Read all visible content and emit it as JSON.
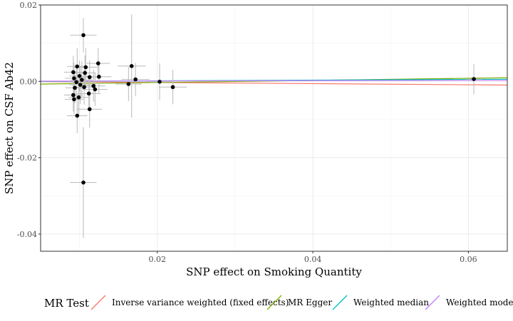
{
  "chart_data": {
    "type": "scatter",
    "xlabel": "SNP effect on Smoking Quantity",
    "ylabel": "SNP effect on CSF Ab42",
    "xlim": [
      0.005,
      0.065
    ],
    "ylim": [
      -0.0445,
      0.02
    ],
    "x_ticks": [
      0.02,
      0.04,
      0.06
    ],
    "x_tick_labels": [
      "0.02",
      "0.04",
      "0.06"
    ],
    "y_ticks": [
      -0.04,
      -0.02,
      0.0,
      0.02
    ],
    "y_tick_labels": [
      "-0.04",
      "-0.02",
      "0.00",
      "0.02"
    ],
    "grid": true,
    "legend": {
      "title": "MR Test",
      "position": "bottom",
      "entries": [
        {
          "label": "Inverse variance weighted (fixed effects)",
          "color": "#F8766D"
        },
        {
          "label": "MR Egger",
          "color": "#7CAE00"
        },
        {
          "label": "Weighted median",
          "color": "#00BFC4"
        },
        {
          "label": "Weighted mode",
          "color": "#C77CFF"
        }
      ]
    },
    "lines": [
      {
        "name": "Inverse variance weighted (fixed effects)",
        "color": "#F8766D",
        "intercept": 0.0,
        "slope": -0.015
      },
      {
        "name": "MR Egger",
        "color": "#7CAE00",
        "intercept": -0.00085,
        "slope": 0.0275
      },
      {
        "name": "Weighted median",
        "color": "#00BFC4",
        "intercept": -5e-05,
        "slope": 0.0093
      },
      {
        "name": "Weighted mode",
        "color": "#C77CFF",
        "intercept": 5e-05,
        "slope": 0.0035
      }
    ],
    "points": [
      {
        "x": 0.0105,
        "y": 0.0121,
        "xerr": 0.0017,
        "yerr": 0.0045
      },
      {
        "x": 0.0124,
        "y": 0.0047,
        "xerr": 0.0015,
        "yerr": 0.004
      },
      {
        "x": 0.0097,
        "y": 0.0039,
        "xerr": 0.0013,
        "yerr": 0.0048
      },
      {
        "x": 0.0108,
        "y": 0.0037,
        "xerr": 0.0016,
        "yerr": 0.005
      },
      {
        "x": 0.0092,
        "y": 0.0024,
        "xerr": 0.0012,
        "yerr": 0.0043
      },
      {
        "x": 0.0107,
        "y": 0.0022,
        "xerr": 0.0014,
        "yerr": 0.0046
      },
      {
        "x": 0.01,
        "y": 0.0014,
        "xerr": 0.0013,
        "yerr": 0.004
      },
      {
        "x": 0.0113,
        "y": 0.0011,
        "xerr": 0.0015,
        "yerr": 0.0044
      },
      {
        "x": 0.0125,
        "y": 0.0012,
        "xerr": 0.0016,
        "yerr": 0.0042
      },
      {
        "x": 0.0093,
        "y": 0.0008,
        "xerr": 0.0012,
        "yerr": 0.004
      },
      {
        "x": 0.0103,
        "y": 0.0004,
        "xerr": 0.0014,
        "yerr": 0.0048
      },
      {
        "x": 0.0096,
        "y": -0.0002,
        "xerr": 0.0013,
        "yerr": 0.0045
      },
      {
        "x": 0.0101,
        "y": -0.0009,
        "xerr": 0.0014,
        "yerr": 0.005
      },
      {
        "x": 0.0118,
        "y": -0.0012,
        "xerr": 0.0015,
        "yerr": 0.0042
      },
      {
        "x": 0.0106,
        "y": -0.0015,
        "xerr": 0.0014,
        "yerr": 0.0046
      },
      {
        "x": 0.012,
        "y": -0.0021,
        "xerr": 0.0016,
        "yerr": 0.0043
      },
      {
        "x": 0.0094,
        "y": -0.0017,
        "xerr": 0.0012,
        "yerr": 0.004
      },
      {
        "x": 0.0112,
        "y": -0.0032,
        "xerr": 0.0015,
        "yerr": 0.0045
      },
      {
        "x": 0.0092,
        "y": -0.0036,
        "xerr": 0.0012,
        "yerr": 0.0043
      },
      {
        "x": 0.0093,
        "y": -0.0047,
        "xerr": 0.0012,
        "yerr": 0.004
      },
      {
        "x": 0.0099,
        "y": -0.0042,
        "xerr": 0.0013,
        "yerr": 0.0046
      },
      {
        "x": 0.0113,
        "y": -0.0073,
        "xerr": 0.0016,
        "yerr": 0.0048
      },
      {
        "x": 0.0097,
        "y": -0.009,
        "xerr": 0.0013,
        "yerr": 0.0046
      },
      {
        "x": 0.0105,
        "y": -0.0265,
        "xerr": 0.0017,
        "yerr": 0.0145
      },
      {
        "x": 0.0167,
        "y": 0.004,
        "xerr": 0.0018,
        "yerr": 0.0135
      },
      {
        "x": 0.0163,
        "y": -0.0007,
        "xerr": 0.0017,
        "yerr": 0.0045
      },
      {
        "x": 0.0172,
        "y": 0.0005,
        "xerr": 0.0018,
        "yerr": 0.0043
      },
      {
        "x": 0.0203,
        "y": -0.0001,
        "xerr": 0.0017,
        "yerr": 0.0048
      },
      {
        "x": 0.022,
        "y": -0.0015,
        "xerr": 0.0018,
        "yerr": 0.0045
      },
      {
        "x": 0.0607,
        "y": 0.0006,
        "xerr": 0.001,
        "yerr": 0.004
      }
    ]
  }
}
